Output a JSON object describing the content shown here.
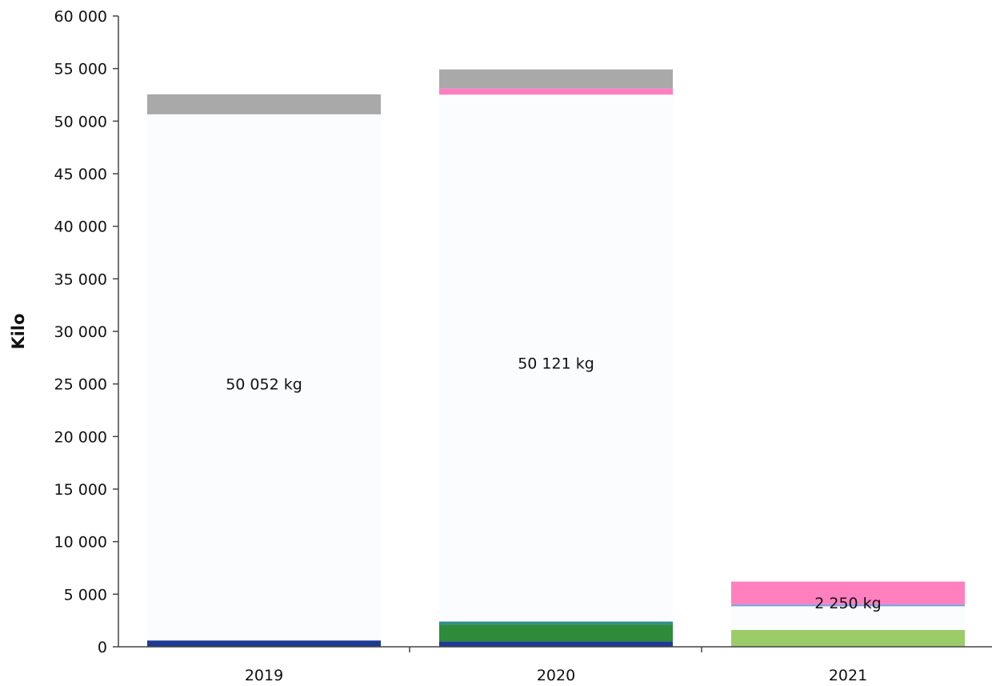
{
  "chart_data": {
    "type": "bar",
    "stacked": true,
    "title": "",
    "xlabel": "",
    "ylabel": "Kilo",
    "ylim": [
      0,
      60000
    ],
    "y_ticks": [
      0,
      5000,
      10000,
      15000,
      20000,
      25000,
      30000,
      35000,
      40000,
      45000,
      50000,
      55000,
      60000
    ],
    "y_tick_labels": [
      "0",
      "5 000",
      "10 000",
      "15 000",
      "20 000",
      "25 000",
      "30 000",
      "35 000",
      "40 000",
      "45 000",
      "50 000",
      "55 000",
      "60 000"
    ],
    "categories": [
      "2019",
      "2020",
      "2021"
    ],
    "grid": false,
    "legend": "none",
    "series": [
      {
        "color": "#1f3a93",
        "values": [
          600,
          500,
          0
        ]
      },
      {
        "color": "#2e8b3a",
        "values": [
          0,
          1600,
          0
        ]
      },
      {
        "color": "#2f8f8f",
        "values": [
          0,
          300,
          0
        ]
      },
      {
        "color": "#9ccc6a",
        "values": [
          0,
          0,
          1600
        ]
      },
      {
        "color": "#fbfcfe",
        "values": [
          50052,
          50121,
          2250
        ]
      },
      {
        "color": "#8aa0d8",
        "values": [
          0,
          0,
          200
        ]
      },
      {
        "color": "#ff7fbf",
        "values": [
          0,
          600,
          2150
        ]
      },
      {
        "color": "#a9a9a9",
        "values": [
          1900,
          1800,
          0
        ]
      }
    ],
    "data_labels": [
      {
        "category": "2019",
        "text": "50 052 kg",
        "y": 25000
      },
      {
        "category": "2020",
        "text": "50 121 kg",
        "y": 27000
      },
      {
        "category": "2021",
        "text": "2 250 kg",
        "y": 4200
      }
    ]
  }
}
